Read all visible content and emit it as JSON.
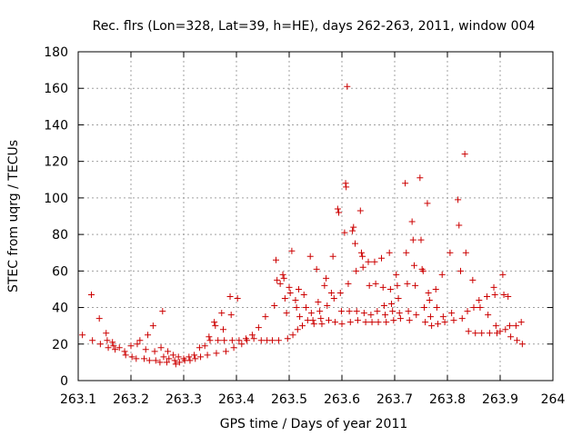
{
  "chart_data": {
    "type": "scatter",
    "title": "Rec. flrs (Lon=328, Lat=39, h=HE), days 262-263, 2011, window 004",
    "xlabel": "GPS time / Days of year 2011",
    "ylabel": "STEC from uqrg / TECUs",
    "xlim": [
      263.1,
      264.0
    ],
    "ylim": [
      0,
      180
    ],
    "xticks": [
      263.1,
      263.2,
      263.3,
      263.4,
      263.5,
      263.6,
      263.7,
      263.8,
      263.9,
      264.0
    ],
    "xtick_labels": [
      "263.1",
      "263.2",
      "263.3",
      "263.4",
      "263.5",
      "263.6",
      "263.7",
      "263.8",
      "263.9",
      "264"
    ],
    "yticks": [
      0,
      20,
      40,
      60,
      80,
      100,
      120,
      140,
      160,
      180
    ],
    "ytick_labels": [
      "0",
      "20",
      "40",
      "60",
      "80",
      "100",
      "120",
      "140",
      "160",
      "180"
    ],
    "grid": true,
    "marker": "plus",
    "color": "#cc0000",
    "points": [
      [
        263.108,
        25
      ],
      [
        263.125,
        47
      ],
      [
        263.127,
        22
      ],
      [
        263.14,
        34
      ],
      [
        263.142,
        20
      ],
      [
        263.153,
        26
      ],
      [
        263.155,
        22
      ],
      [
        263.157,
        18
      ],
      [
        263.165,
        21
      ],
      [
        263.167,
        19
      ],
      [
        263.17,
        17
      ],
      [
        263.178,
        18
      ],
      [
        263.188,
        16
      ],
      [
        263.19,
        14
      ],
      [
        263.2,
        19
      ],
      [
        263.202,
        13
      ],
      [
        263.21,
        12
      ],
      [
        263.212,
        20
      ],
      [
        263.217,
        22
      ],
      [
        263.225,
        12
      ],
      [
        263.228,
        17
      ],
      [
        263.232,
        25
      ],
      [
        263.235,
        11
      ],
      [
        263.242,
        30
      ],
      [
        263.245,
        16
      ],
      [
        263.247,
        11
      ],
      [
        263.255,
        10
      ],
      [
        263.257,
        18
      ],
      [
        263.26,
        38
      ],
      [
        263.262,
        13
      ],
      [
        263.268,
        10
      ],
      [
        263.27,
        16
      ],
      [
        263.272,
        12
      ],
      [
        263.28,
        14
      ],
      [
        263.283,
        11
      ],
      [
        263.285,
        9
      ],
      [
        263.29,
        13
      ],
      [
        263.292,
        10
      ],
      [
        263.3,
        12
      ],
      [
        263.302,
        11
      ],
      [
        263.31,
        13
      ],
      [
        263.312,
        11
      ],
      [
        263.32,
        14
      ],
      [
        263.322,
        12
      ],
      [
        263.33,
        18
      ],
      [
        263.332,
        13
      ],
      [
        263.34,
        19
      ],
      [
        263.345,
        14
      ],
      [
        263.348,
        24
      ],
      [
        263.35,
        22
      ],
      [
        263.358,
        32
      ],
      [
        263.36,
        30
      ],
      [
        263.362,
        15
      ],
      [
        263.365,
        22
      ],
      [
        263.372,
        37
      ],
      [
        263.375,
        28
      ],
      [
        263.377,
        22
      ],
      [
        263.38,
        16
      ],
      [
        263.388,
        46
      ],
      [
        263.39,
        36
      ],
      [
        263.392,
        22
      ],
      [
        263.395,
        18
      ],
      [
        263.402,
        45
      ],
      [
        263.405,
        22
      ],
      [
        263.41,
        20
      ],
      [
        263.418,
        23
      ],
      [
        263.42,
        22
      ],
      [
        263.43,
        25
      ],
      [
        263.433,
        23
      ],
      [
        263.442,
        29
      ],
      [
        263.447,
        22
      ],
      [
        263.455,
        35
      ],
      [
        263.458,
        22
      ],
      [
        263.468,
        22
      ],
      [
        263.472,
        41
      ],
      [
        263.475,
        66
      ],
      [
        263.477,
        55
      ],
      [
        263.48,
        22
      ],
      [
        263.483,
        53
      ],
      [
        263.488,
        58
      ],
      [
        263.49,
        56
      ],
      [
        263.492,
        45
      ],
      [
        263.495,
        37
      ],
      [
        263.497,
        23
      ],
      [
        263.5,
        51
      ],
      [
        263.502,
        48
      ],
      [
        263.505,
        71
      ],
      [
        263.507,
        25
      ],
      [
        263.512,
        44
      ],
      [
        263.514,
        40
      ],
      [
        263.516,
        28
      ],
      [
        263.518,
        50
      ],
      [
        263.52,
        35
      ],
      [
        263.525,
        30
      ],
      [
        263.528,
        47
      ],
      [
        263.532,
        40
      ],
      [
        263.535,
        33
      ],
      [
        263.54,
        68
      ],
      [
        263.542,
        37
      ],
      [
        263.545,
        33
      ],
      [
        263.547,
        31
      ],
      [
        263.552,
        61
      ],
      [
        263.555,
        43
      ],
      [
        263.558,
        38
      ],
      [
        263.56,
        34
      ],
      [
        263.562,
        31
      ],
      [
        263.567,
        52
      ],
      [
        263.57,
        56
      ],
      [
        263.572,
        41
      ],
      [
        263.575,
        33
      ],
      [
        263.58,
        48
      ],
      [
        263.583,
        68
      ],
      [
        263.585,
        45
      ],
      [
        263.587,
        32
      ],
      [
        263.592,
        94
      ],
      [
        263.594,
        92
      ],
      [
        263.597,
        48
      ],
      [
        263.599,
        38
      ],
      [
        263.6,
        31
      ],
      [
        263.605,
        81
      ],
      [
        263.607,
        108
      ],
      [
        263.608,
        106
      ],
      [
        263.61,
        161
      ],
      [
        263.612,
        53
      ],
      [
        263.614,
        38
      ],
      [
        263.616,
        32
      ],
      [
        263.62,
        82
      ],
      [
        263.622,
        84
      ],
      [
        263.625,
        75
      ],
      [
        263.627,
        60
      ],
      [
        263.628,
        38
      ],
      [
        263.63,
        33
      ],
      [
        263.635,
        93
      ],
      [
        263.637,
        70
      ],
      [
        263.639,
        68
      ],
      [
        263.64,
        62
      ],
      [
        263.642,
        37
      ],
      [
        263.645,
        32
      ],
      [
        263.65,
        65
      ],
      [
        263.652,
        52
      ],
      [
        263.655,
        36
      ],
      [
        263.657,
        32
      ],
      [
        263.662,
        65
      ],
      [
        263.664,
        53
      ],
      [
        263.667,
        38
      ],
      [
        263.669,
        32
      ],
      [
        263.675,
        67
      ],
      [
        263.678,
        51
      ],
      [
        263.68,
        41
      ],
      [
        263.682,
        36
      ],
      [
        263.684,
        32
      ],
      [
        263.69,
        70
      ],
      [
        263.692,
        50
      ],
      [
        263.694,
        42
      ],
      [
        263.696,
        38
      ],
      [
        263.698,
        33
      ],
      [
        263.703,
        58
      ],
      [
        263.705,
        52
      ],
      [
        263.707,
        45
      ],
      [
        263.709,
        37
      ],
      [
        263.711,
        34
      ],
      [
        263.72,
        108
      ],
      [
        263.722,
        70
      ],
      [
        263.724,
        53
      ],
      [
        263.726,
        38
      ],
      [
        263.728,
        33
      ],
      [
        263.733,
        87
      ],
      [
        263.735,
        77
      ],
      [
        263.737,
        63
      ],
      [
        263.739,
        52
      ],
      [
        263.741,
        36
      ],
      [
        263.748,
        111
      ],
      [
        263.75,
        77
      ],
      [
        263.752,
        61
      ],
      [
        263.754,
        60
      ],
      [
        263.756,
        40
      ],
      [
        263.758,
        32
      ],
      [
        263.762,
        97
      ],
      [
        263.764,
        48
      ],
      [
        263.766,
        44
      ],
      [
        263.768,
        35
      ],
      [
        263.77,
        30
      ],
      [
        263.778,
        50
      ],
      [
        263.78,
        40
      ],
      [
        263.782,
        31
      ],
      [
        263.79,
        58
      ],
      [
        263.792,
        35
      ],
      [
        263.795,
        32
      ],
      [
        263.805,
        70
      ],
      [
        263.808,
        37
      ],
      [
        263.812,
        33
      ],
      [
        263.82,
        99
      ],
      [
        263.822,
        85
      ],
      [
        263.825,
        60
      ],
      [
        263.828,
        34
      ],
      [
        263.833,
        124
      ],
      [
        263.835,
        70
      ],
      [
        263.838,
        38
      ],
      [
        263.84,
        27
      ],
      [
        263.848,
        55
      ],
      [
        263.85,
        40
      ],
      [
        263.853,
        26
      ],
      [
        263.86,
        44
      ],
      [
        263.862,
        40
      ],
      [
        263.865,
        26
      ],
      [
        263.875,
        46
      ],
      [
        263.877,
        36
      ],
      [
        263.88,
        26
      ],
      [
        263.888,
        51
      ],
      [
        263.89,
        47
      ],
      [
        263.892,
        30
      ],
      [
        263.894,
        26
      ],
      [
        263.9,
        27
      ],
      [
        263.905,
        58
      ],
      [
        263.907,
        47
      ],
      [
        263.91,
        28
      ],
      [
        263.915,
        46
      ],
      [
        263.918,
        30
      ],
      [
        263.92,
        24
      ],
      [
        263.93,
        30
      ],
      [
        263.932,
        22
      ],
      [
        263.94,
        32
      ],
      [
        263.942,
        20
      ]
    ]
  }
}
